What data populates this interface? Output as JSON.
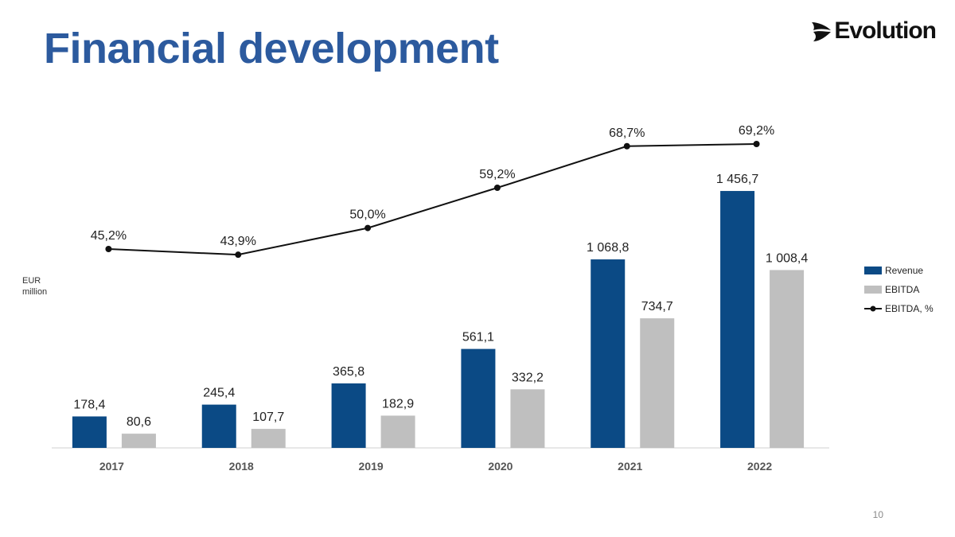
{
  "slide": {
    "title": "Financial development",
    "logo_text": "Evolution",
    "unit_label": "EUR million",
    "page_number": "10"
  },
  "colors": {
    "title": "#2c5a9e",
    "revenue": "#0b4a85",
    "ebitda": "#bfbfbf",
    "margin_line": "#111111"
  },
  "chart_data": {
    "type": "bar",
    "categories": [
      "2017",
      "2018",
      "2019",
      "2020",
      "2021",
      "2022"
    ],
    "ylabel": "EUR million",
    "series": [
      {
        "name": "Revenue",
        "type": "bar",
        "values": [
          178.4,
          245.4,
          365.8,
          561.1,
          1068.8,
          1456.7
        ],
        "labels": [
          "178,4",
          "245,4",
          "365,8",
          "561,1",
          "1 068,8",
          "1 456,7"
        ]
      },
      {
        "name": "EBITDA",
        "type": "bar",
        "values": [
          80.6,
          107.7,
          182.9,
          332.2,
          734.7,
          1008.4
        ],
        "labels": [
          "80,6",
          "107,7",
          "182,9",
          "332,2",
          "734,7",
          "1 008,4"
        ]
      },
      {
        "name": "EBITDA, %",
        "type": "line",
        "values": [
          45.2,
          43.9,
          50.0,
          59.2,
          68.7,
          69.2
        ],
        "labels": [
          "45,2%",
          "43,9%",
          "50,0%",
          "59,2%",
          "68,7%",
          "69,2%"
        ]
      }
    ],
    "grid": false,
    "legend_position": "right"
  }
}
